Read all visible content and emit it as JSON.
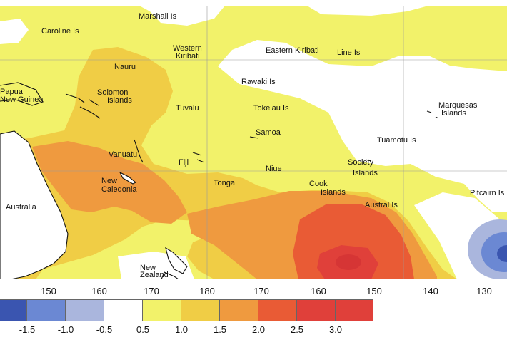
{
  "colors": {
    "ocean": "#ffffff",
    "land_outline": "#111111",
    "bins": [
      "#3a55b0",
      "#6b88d3",
      "#aab6dd",
      "#ffffff",
      "#f2f26a",
      "#f0cd45",
      "#ef9a3f",
      "#e95b35",
      "#e0403a"
    ]
  },
  "places": [
    {
      "id": "marshall",
      "label": "Marshall Is"
    },
    {
      "id": "caroline",
      "label": "Caroline Is"
    },
    {
      "id": "western-kiribati-1",
      "label": "Western"
    },
    {
      "id": "western-kiribati-2",
      "label": "Kiribati"
    },
    {
      "id": "eastern-kiribati",
      "label": "Eastern Kiribati"
    },
    {
      "id": "line",
      "label": "Line Is"
    },
    {
      "id": "nauru",
      "label": "Nauru"
    },
    {
      "id": "rawaki",
      "label": "Rawaki Is"
    },
    {
      "id": "papua-1",
      "label": "Papua"
    },
    {
      "id": "papua-2",
      "label": "New Guinea"
    },
    {
      "id": "solomon-1",
      "label": "Solomon"
    },
    {
      "id": "solomon-2",
      "label": "Islands"
    },
    {
      "id": "tuvalu",
      "label": "Tuvalu"
    },
    {
      "id": "tokelau",
      "label": "Tokelau Is"
    },
    {
      "id": "marquesas-1",
      "label": "Marquesas"
    },
    {
      "id": "marquesas-2",
      "label": "Islands"
    },
    {
      "id": "samoa",
      "label": "Samoa"
    },
    {
      "id": "tuamotu",
      "label": "Tuamotu Is"
    },
    {
      "id": "vanuatu",
      "label": "Vanuatu"
    },
    {
      "id": "fiji",
      "label": "Fiji"
    },
    {
      "id": "society-1",
      "label": "Society"
    },
    {
      "id": "society-2",
      "label": "Islands"
    },
    {
      "id": "niue",
      "label": "Niue"
    },
    {
      "id": "new-caledonia-1",
      "label": "New"
    },
    {
      "id": "new-caledonia-2",
      "label": "Caledonia"
    },
    {
      "id": "tonga",
      "label": "Tonga"
    },
    {
      "id": "cook-1",
      "label": "Cook"
    },
    {
      "id": "cook-2",
      "label": "Islands"
    },
    {
      "id": "pitcairn",
      "label": "Pitcairn Is"
    },
    {
      "id": "austral",
      "label": "Austral Is"
    },
    {
      "id": "australia",
      "label": "Australia"
    },
    {
      "id": "new-zealand-1",
      "label": "New"
    },
    {
      "id": "new-zealand-2",
      "label": "Zealand"
    }
  ],
  "longitude_ticks": [
    "150",
    "160",
    "170",
    "180",
    "170",
    "160",
    "150",
    "140",
    "130"
  ],
  "legend": {
    "labels": [
      "-1.5",
      "-1.0",
      "-0.5",
      "0.5",
      "1.0",
      "1.5",
      "2.0",
      "2.5",
      "3.0"
    ]
  }
}
